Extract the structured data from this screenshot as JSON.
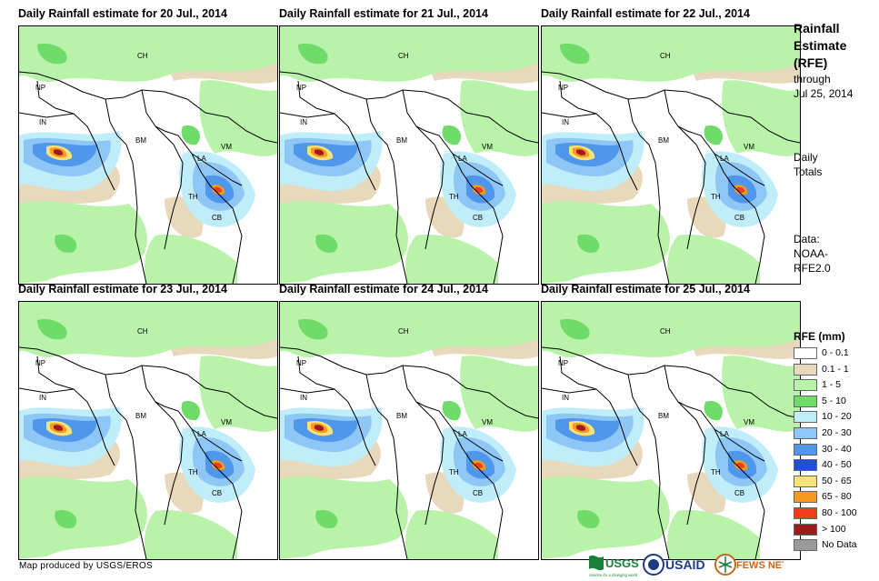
{
  "panels": [
    {
      "title": "Daily Rainfall estimate for 20 Jul., 2014",
      "labels": {
        "ch": "CH",
        "np": "NP",
        "in": "IN",
        "bm": "BM",
        "la": "LA",
        "vm": "VM",
        "th": "TH",
        "cb": "CB"
      }
    },
    {
      "title": "Daily Rainfall estimate for 21 Jul., 2014",
      "labels": {
        "ch": "CH",
        "np": "NP",
        "in": "IN",
        "bm": "BM",
        "la": "LA",
        "vm": "VM",
        "th": "TH",
        "cb": "CB"
      }
    },
    {
      "title": "Daily Rainfall estimate for 22 Jul., 2014",
      "labels": {
        "ch": "CH",
        "np": "NP",
        "in": "IN",
        "bm": "BM",
        "la": "LA",
        "vm": "VM",
        "th": "TH",
        "cb": "CB"
      }
    },
    {
      "title": "Daily Rainfall estimate for 23 Jul., 2014",
      "labels": {
        "ch": "CH",
        "np": "NP",
        "in": "IN",
        "bm": "BM",
        "la": "LA",
        "vm": "VM",
        "th": "TH",
        "cb": "CB"
      }
    },
    {
      "title": "Daily Rainfall estimate for 24 Jul., 2014",
      "labels": {
        "ch": "CH",
        "np": "NP",
        "in": "IN",
        "bm": "BM",
        "la": "LA",
        "vm": "VM",
        "th": "TH",
        "cb": "CB"
      }
    },
    {
      "title": "Daily Rainfall estimate for 25 Jul., 2014",
      "labels": {
        "ch": "CH",
        "np": "NP",
        "in": "IN",
        "bm": "BM",
        "la": "LA",
        "vm": "VM",
        "th": "TH",
        "cb": "CB"
      }
    }
  ],
  "sidebar": {
    "title_lines": [
      "Rainfall",
      "Estimate",
      "(RFE)"
    ],
    "through": "through",
    "date": "Jul 25, 2014",
    "totals_lines": [
      "Daily",
      "Totals"
    ],
    "data_lines": [
      "Data:",
      "NOAA-",
      "RFE2.0"
    ]
  },
  "legend": {
    "title": "RFE (mm)",
    "items": [
      {
        "label": "0 - 0.1",
        "color": "#ffffff"
      },
      {
        "label": "0.1 - 1",
        "color": "#e8d9bd"
      },
      {
        "label": "1 - 5",
        "color": "#b9f2a9"
      },
      {
        "label": "5 - 10",
        "color": "#6fdc6a"
      },
      {
        "label": "10 - 20",
        "color": "#bfeefa"
      },
      {
        "label": "20 - 30",
        "color": "#8ec7f5"
      },
      {
        "label": "30 - 40",
        "color": "#4f97ea"
      },
      {
        "label": "40 - 50",
        "color": "#1f4fd6"
      },
      {
        "label": "50 - 65",
        "color": "#f9e27a"
      },
      {
        "label": "65 - 80",
        "color": "#f59a1e"
      },
      {
        "label": "80 - 100",
        "color": "#ef3d1b"
      },
      {
        "label": "> 100",
        "color": "#9e1b1b"
      },
      {
        "label": "No Data",
        "color": "#9a9a9a"
      }
    ]
  },
  "credit": "Map produced by USGS/EROS",
  "logos": {
    "usgs": "USGS",
    "usgs_tagline": "science for a changing world",
    "usaid": "USAID",
    "fewsnet": "FEWS NET"
  }
}
